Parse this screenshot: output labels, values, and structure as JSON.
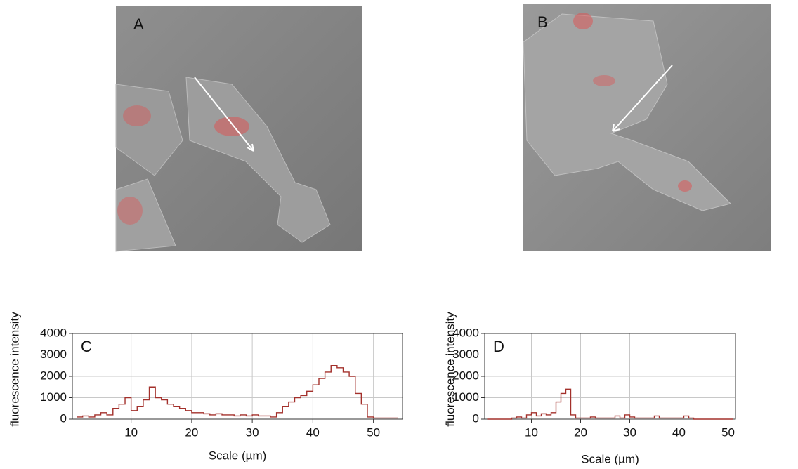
{
  "images": [
    {
      "label": "A"
    },
    {
      "label": "B"
    }
  ],
  "chart_data": [
    {
      "type": "line",
      "label": "C",
      "xlabel": "Scale (µm)",
      "ylabel": "fluorescence intensity",
      "color": "#a3302b",
      "step": true,
      "grid": true,
      "x": [
        1,
        2,
        3,
        4,
        5,
        6,
        7,
        8,
        9,
        10,
        11,
        12,
        13,
        14,
        15,
        16,
        17,
        18,
        19,
        20,
        21,
        22,
        23,
        24,
        25,
        26,
        27,
        28,
        29,
        30,
        31,
        32,
        33,
        34,
        35,
        36,
        37,
        38,
        39,
        40,
        41,
        42,
        43,
        44,
        45,
        46,
        47,
        48,
        49,
        50,
        51,
        52,
        53,
        54
      ],
      "values": [
        100,
        150,
        100,
        200,
        300,
        200,
        500,
        700,
        1000,
        400,
        600,
        900,
        1500,
        1000,
        900,
        700,
        600,
        500,
        400,
        300,
        300,
        250,
        200,
        250,
        200,
        200,
        150,
        200,
        150,
        200,
        150,
        150,
        100,
        300,
        600,
        800,
        1000,
        1100,
        1300,
        1600,
        1900,
        2200,
        2500,
        2400,
        2200,
        2000,
        1200,
        700,
        100,
        50,
        50,
        50,
        50,
        50
      ],
      "xlim": [
        0.3,
        54.8
      ],
      "xticks": [
        10,
        20,
        30,
        40,
        50
      ],
      "ylim": [
        0,
        4000
      ],
      "yticks": [
        0,
        1000,
        2000,
        3000,
        4000
      ]
    },
    {
      "type": "line",
      "label": "D",
      "xlabel": "Scale (µm)",
      "ylabel": "fluorescence intensity",
      "color": "#a3302b",
      "step": true,
      "grid": true,
      "x": [
        1,
        2,
        3,
        4,
        5,
        6,
        7,
        8,
        9,
        10,
        11,
        12,
        13,
        14,
        15,
        16,
        17,
        18,
        19,
        20,
        21,
        22,
        23,
        24,
        25,
        26,
        27,
        28,
        29,
        30,
        31,
        32,
        33,
        34,
        35,
        36,
        37,
        38,
        39,
        40,
        41,
        42,
        43,
        44,
        45,
        46,
        47,
        48,
        49,
        50,
        51
      ],
      "values": [
        0,
        0,
        0,
        0,
        0,
        50,
        100,
        50,
        200,
        300,
        150,
        250,
        200,
        300,
        800,
        1200,
        1400,
        200,
        50,
        50,
        50,
        100,
        50,
        50,
        50,
        50,
        150,
        50,
        200,
        100,
        50,
        50,
        50,
        50,
        150,
        50,
        50,
        50,
        50,
        50,
        150,
        50,
        0,
        0,
        0,
        0,
        0,
        0,
        0,
        0,
        0
      ],
      "xlim": [
        0.5,
        51.5
      ],
      "xticks": [
        10,
        20,
        30,
        40,
        50
      ],
      "ylim": [
        0,
        4000
      ],
      "yticks": [
        0,
        1000,
        2000,
        3000,
        4000
      ]
    }
  ]
}
